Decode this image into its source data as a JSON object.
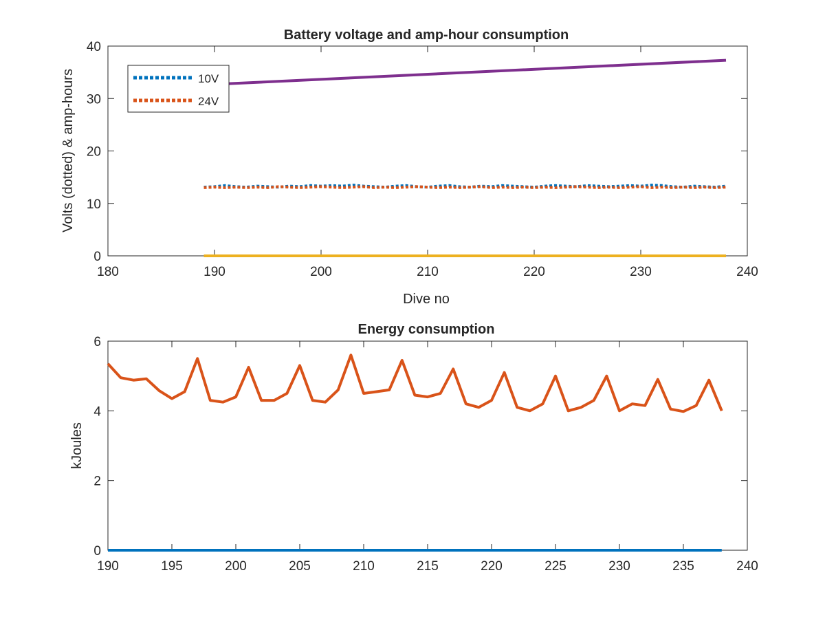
{
  "chart_data": [
    {
      "type": "line",
      "title": "Battery voltage and amp-hour consumption",
      "xlabel": "Dive no",
      "ylabel": "Volts (dotted) & amp-hours",
      "xlim": [
        180,
        240
      ],
      "ylim": [
        0,
        40
      ],
      "xticks": [
        "180",
        "190",
        "200",
        "210",
        "220",
        "230",
        "240"
      ],
      "yticks": [
        "0",
        "10",
        "20",
        "30",
        "40"
      ],
      "grid": false,
      "legend_position": "top-left",
      "x": [
        189,
        190,
        191,
        192,
        193,
        194,
        195,
        196,
        197,
        198,
        199,
        200,
        201,
        202,
        203,
        204,
        205,
        206,
        207,
        208,
        209,
        210,
        211,
        212,
        213,
        214,
        215,
        216,
        217,
        218,
        219,
        220,
        221,
        222,
        223,
        224,
        225,
        226,
        227,
        228,
        229,
        230,
        231,
        232,
        233,
        234,
        235,
        236,
        237,
        238
      ],
      "series": [
        {
          "name": "10V",
          "style": "dotted",
          "color": "#0072BD",
          "values": [
            13.1,
            13.2,
            13.4,
            13.2,
            13.1,
            13.3,
            13.2,
            13.1,
            13.3,
            13.2,
            13.4,
            13.3,
            13.4,
            13.3,
            13.5,
            13.3,
            13.2,
            13.1,
            13.3,
            13.4,
            13.2,
            13.1,
            13.3,
            13.4,
            13.2,
            13.1,
            13.3,
            13.2,
            13.4,
            13.3,
            13.2,
            13.1,
            13.3,
            13.4,
            13.3,
            13.2,
            13.4,
            13.3,
            13.2,
            13.3,
            13.4,
            13.3,
            13.5,
            13.4,
            13.2,
            13.1,
            13.3,
            13.2,
            13.1,
            13.3
          ]
        },
        {
          "name": "24V",
          "style": "dotted",
          "color": "#D95319",
          "values": [
            13.0,
            13.1,
            13.0,
            13.1,
            13.0,
            13.1,
            13.0,
            13.2,
            13.1,
            13.0,
            13.1,
            13.2,
            13.1,
            13.0,
            13.1,
            13.2,
            13.0,
            13.1,
            13.0,
            13.1,
            13.2,
            13.1,
            13.0,
            13.1,
            13.0,
            13.1,
            13.2,
            13.0,
            13.1,
            13.0,
            13.1,
            13.0,
            13.1,
            13.0,
            13.1,
            13.2,
            13.1,
            13.0,
            13.1,
            13.0,
            13.1,
            13.2,
            13.0,
            13.1,
            13.0,
            13.1,
            13.0,
            13.1,
            13.0,
            13.1
          ]
        },
        {
          "style": "solid",
          "color": "#EDB120",
          "values": [
            0,
            0,
            0,
            0,
            0,
            0,
            0,
            0,
            0,
            0,
            0,
            0,
            0,
            0,
            0,
            0,
            0,
            0,
            0,
            0,
            0,
            0,
            0,
            0,
            0,
            0,
            0,
            0,
            0,
            0,
            0,
            0,
            0,
            0,
            0,
            0,
            0,
            0,
            0,
            0,
            0,
            0,
            0,
            0,
            0,
            0,
            0,
            0,
            0,
            0
          ]
        },
        {
          "style": "solid",
          "color": "#7E2F8E",
          "x": [
            191,
            238
          ],
          "values": [
            32.8,
            37.3
          ]
        }
      ]
    },
    {
      "type": "line",
      "title": "Energy consumption",
      "xlabel": "",
      "ylabel": "kJoules",
      "xlim": [
        190,
        240
      ],
      "ylim": [
        0,
        6
      ],
      "xticks": [
        "190",
        "195",
        "200",
        "205",
        "210",
        "215",
        "220",
        "225",
        "230",
        "235",
        "240"
      ],
      "yticks": [
        "0",
        "2",
        "4",
        "6"
      ],
      "grid": false,
      "x": [
        190,
        191,
        192,
        193,
        194,
        195,
        196,
        197,
        198,
        199,
        200,
        201,
        202,
        203,
        204,
        205,
        206,
        207,
        208,
        209,
        210,
        211,
        212,
        213,
        214,
        215,
        216,
        217,
        218,
        219,
        220,
        221,
        222,
        223,
        224,
        225,
        226,
        227,
        228,
        229,
        230,
        231,
        232,
        233,
        234,
        235,
        236,
        237,
        238
      ],
      "series": [
        {
          "style": "solid",
          "color": "#D95319",
          "values": [
            5.35,
            4.95,
            4.88,
            4.92,
            4.58,
            4.35,
            4.55,
            5.5,
            4.3,
            4.25,
            4.4,
            5.25,
            4.3,
            4.3,
            4.5,
            5.3,
            4.3,
            4.25,
            4.6,
            5.6,
            4.5,
            4.55,
            4.6,
            5.45,
            4.45,
            4.4,
            4.5,
            5.2,
            4.2,
            4.1,
            4.3,
            5.1,
            4.1,
            4.0,
            4.2,
            5.0,
            4.0,
            4.1,
            4.3,
            5.0,
            4.0,
            4.2,
            4.15,
            4.9,
            4.05,
            3.98,
            4.15,
            4.88,
            4.0
          ]
        },
        {
          "style": "solid",
          "color": "#0072BD",
          "values": [
            0,
            0,
            0,
            0,
            0,
            0,
            0,
            0,
            0,
            0,
            0,
            0,
            0,
            0,
            0,
            0,
            0,
            0,
            0,
            0,
            0,
            0,
            0,
            0,
            0,
            0,
            0,
            0,
            0,
            0,
            0,
            0,
            0,
            0,
            0,
            0,
            0,
            0,
            0,
            0,
            0,
            0,
            0,
            0,
            0,
            0,
            0,
            0,
            0
          ]
        }
      ]
    }
  ]
}
